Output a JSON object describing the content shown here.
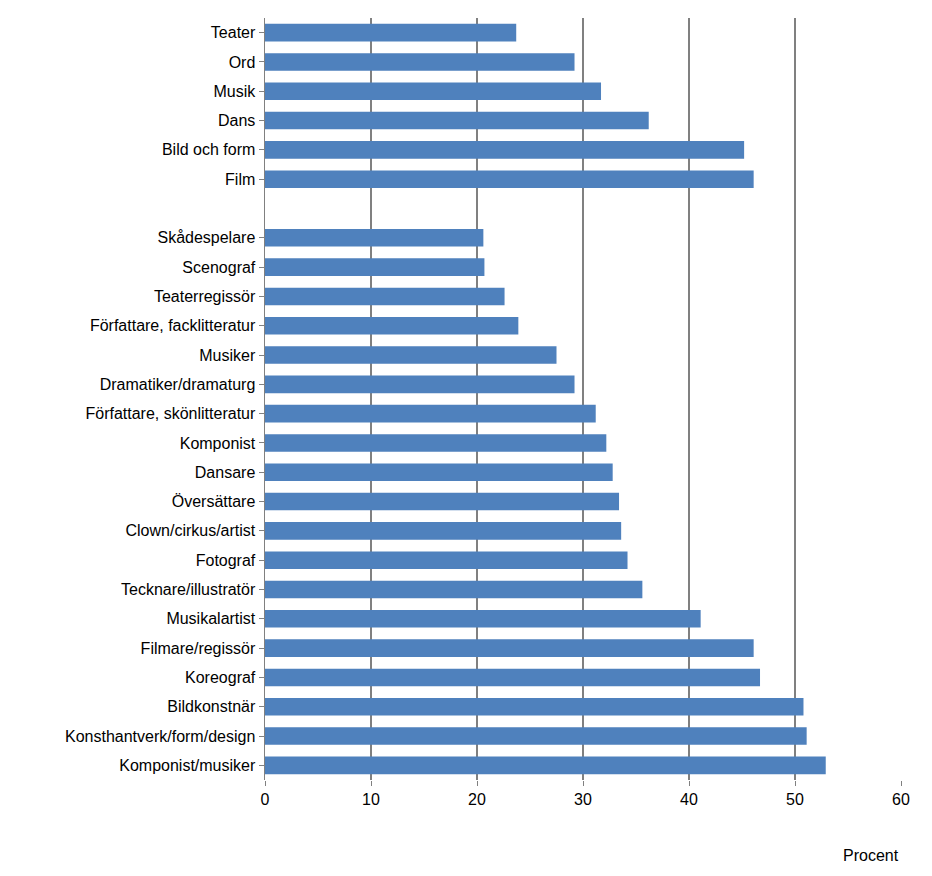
{
  "chart_data": {
    "type": "bar",
    "orientation": "horizontal",
    "x_label": "Procent",
    "categories": [
      "Teater",
      "Ord",
      "Musik",
      "Dans",
      "Bild och form",
      "Film",
      null,
      "Skådespelare",
      "Scenograf",
      "Teaterregissör",
      "Författare, facklitteratur",
      "Musiker",
      "Dramatiker/dramaturg",
      "Författare, skönlitteratur",
      "Komponist",
      "Dansare",
      "Översättare",
      "Clown/cirkus/artist",
      "Fotograf",
      "Tecknare/illustratör",
      "Musikalartist",
      "Filmare/regissör",
      "Koreograf",
      "Bildkonstnär",
      "Konsthantverk/form/design",
      "Komponist/musiker"
    ],
    "values": [
      23.7,
      29.2,
      31.7,
      36.2,
      45.2,
      46.1,
      null,
      20.6,
      20.7,
      22.6,
      23.9,
      27.5,
      29.2,
      31.2,
      32.2,
      32.8,
      33.4,
      33.6,
      34.2,
      35.6,
      41.1,
      46.1,
      46.7,
      50.8,
      51.1,
      52.9
    ],
    "color": "#4f81bd",
    "xlim": [
      0,
      60
    ],
    "xticks": [
      0,
      10,
      20,
      30,
      40,
      50,
      60
    ],
    "grid": true
  }
}
